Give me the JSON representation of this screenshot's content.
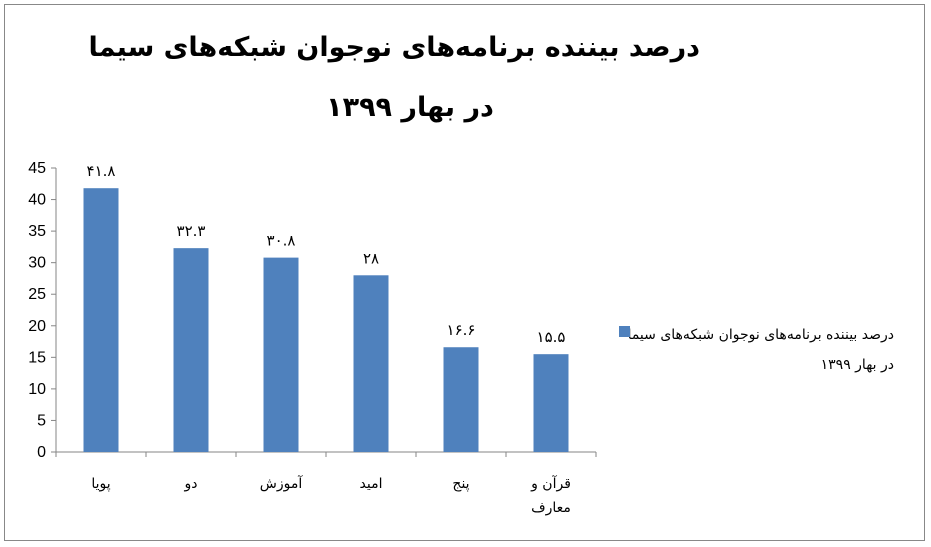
{
  "chart_data": {
    "type": "bar",
    "title_line1": "درصد بیننده برنامه‌های نوجوان شبکه‌های سیما",
    "title_line2": "در بهار ۱۳۹۹",
    "categories": [
      "پویا",
      "دو",
      "آموزش",
      "امید",
      "پنج",
      "قرآن و معارف"
    ],
    "series": [
      {
        "name": "درصد بیننده برنامه‌های نوجوان شبکه‌های سیما در بهار ۱۳۹۹",
        "values": [
          41.8,
          32.3,
          30.8,
          28,
          16.6,
          15.5
        ],
        "data_labels": [
          "۴۱.۸",
          "۳۲.۳",
          "۳۰.۸",
          "۲۸",
          "۱۶.۶",
          "۱۵.۵"
        ],
        "color": "#4f81bd"
      }
    ],
    "ylim": [
      0,
      45
    ],
    "yticks": [
      "0",
      "5",
      "10",
      "15",
      "20",
      "25",
      "30",
      "35",
      "40",
      "45"
    ],
    "grid": false,
    "legend_position": "right"
  }
}
